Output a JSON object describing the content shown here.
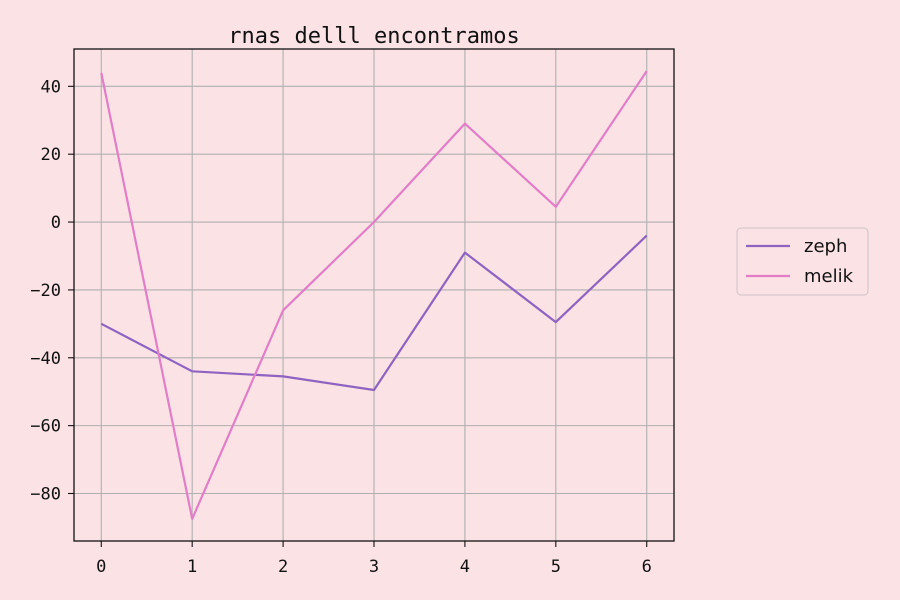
{
  "chart_data": {
    "type": "line",
    "title": "rnas delll encontramos",
    "xlabel": "",
    "ylabel": "",
    "x": [
      0,
      1,
      2,
      3,
      4,
      5,
      6
    ],
    "xlim": [
      -0.3,
      6.3
    ],
    "ylim": [
      -94,
      51
    ],
    "xticks": [
      0,
      1,
      2,
      3,
      4,
      5,
      6
    ],
    "yticks": [
      40,
      20,
      0,
      -20,
      -40,
      -60,
      -80
    ],
    "grid": true,
    "legend_position": "right",
    "series": [
      {
        "name": "zeph",
        "color": "#8e63c1",
        "values": [
          -30,
          -44,
          -45.5,
          -49.5,
          -9,
          -29.5,
          -4
        ]
      },
      {
        "name": "melik",
        "color": "#e27dc8",
        "values": [
          44,
          -87.5,
          -26,
          0,
          29,
          4.5,
          44.5
        ]
      }
    ],
    "colors": {
      "background": "#fbe2e5",
      "grid": "#b0b0b0",
      "axes": "#111111"
    }
  }
}
